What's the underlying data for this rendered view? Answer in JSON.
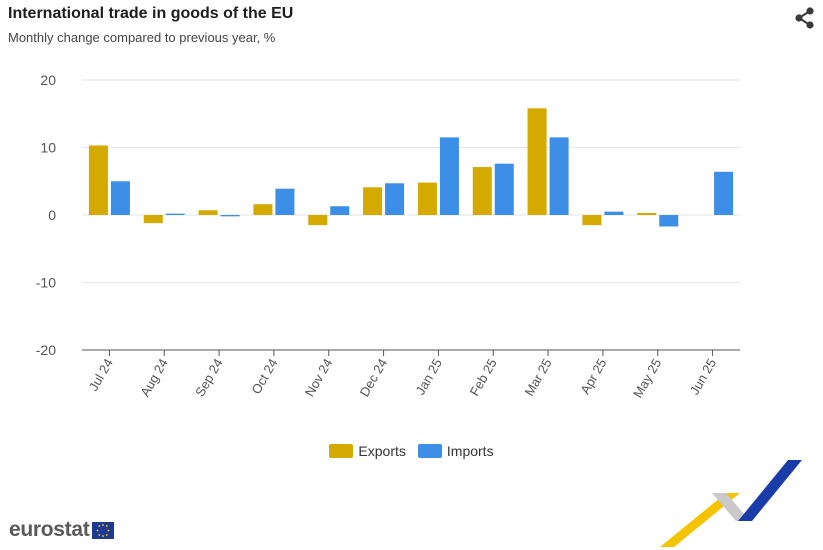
{
  "header": {
    "title": "International trade in goods of the EU",
    "subtitle": "Monthly change compared to previous year, %"
  },
  "colors": {
    "exports": "#d4a900",
    "imports": "#3c8ee6",
    "grid": "#e6e6e6",
    "axis": "#555555"
  },
  "logo": {
    "text": "eurostat"
  },
  "chart_data": {
    "type": "bar",
    "title": "International trade in goods of the EU",
    "subtitle": "Monthly change compared to previous year, %",
    "xlabel": "",
    "ylabel": "",
    "categories": [
      "Jul 24",
      "Aug 24",
      "Sep 24",
      "Oct 24",
      "Nov 24",
      "Dec 24",
      "Jan 25",
      "Feb 25",
      "Mar 25",
      "Apr 25",
      "May 25",
      "Jun 25"
    ],
    "series": [
      {
        "name": "Exports",
        "values": [
          10.3,
          -1.2,
          0.7,
          1.6,
          -1.5,
          4.1,
          4.8,
          7.1,
          15.8,
          -1.5,
          0.3,
          0.0
        ]
      },
      {
        "name": "Imports",
        "values": [
          5.0,
          0.2,
          -0.2,
          3.9,
          1.3,
          4.7,
          11.5,
          7.6,
          11.5,
          0.5,
          -1.7,
          6.4
        ]
      }
    ],
    "ylim": [
      -20,
      20
    ],
    "yticks": [
      20,
      10,
      0,
      -10,
      -20
    ],
    "grid": true,
    "legend_position": "bottom-center"
  }
}
